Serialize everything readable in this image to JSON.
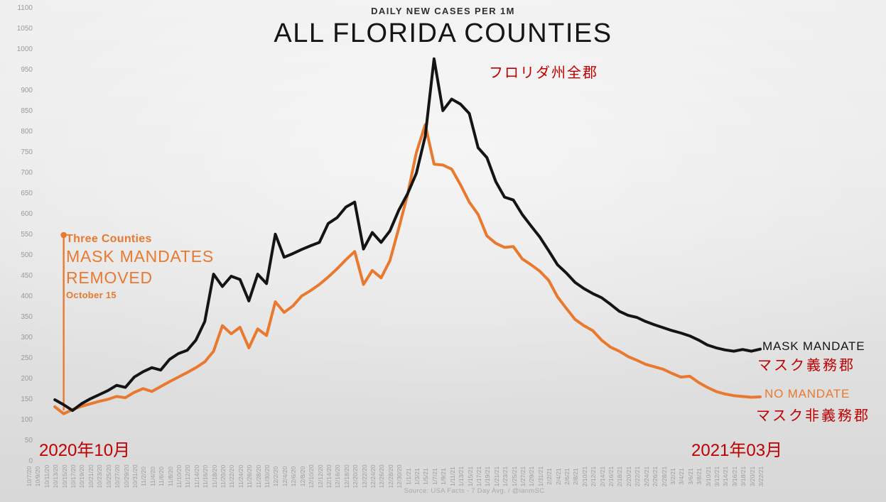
{
  "header": {
    "subtitle": "DAILY NEW CASES PER 1M",
    "title": "ALL FLORIDA COUNTIES",
    "title_ja": "フロリダ州全郡"
  },
  "annotations": {
    "event": {
      "line1": "Three Counties",
      "line2": "MASK MANDATES",
      "line3": "REMOVED",
      "line4": "October 15"
    },
    "series_labels": {
      "mask_mandate": "MASK MANDATE",
      "mask_mandate_ja": "マスク義務郡",
      "no_mandate": "NO MANDATE",
      "no_mandate_ja": "マスク非義務郡"
    },
    "period_left_ja": "2020年10月",
    "period_right_ja": "2021年03月"
  },
  "footer": {
    "source": "Source: USA Facts - 7 Day Avg. / @ianmSC"
  },
  "colors": {
    "background_top": "#efefef",
    "background_bottom": "#d8d8d8",
    "mask_mandate_line": "#141414",
    "no_mandate_line": "#e8792f",
    "annotation_orange": "#e8792f",
    "annotation_red": "#c00000",
    "axis_text": "#9b9b9b",
    "title_text": "#151515",
    "source_text": "#a9a9a9"
  },
  "chart_data": {
    "type": "line",
    "title": "ALL FLORIDA COUNTIES",
    "subtitle": "DAILY NEW CASES PER 1M",
    "ylabel": "",
    "xlabel": "",
    "ylim": [
      0,
      1100
    ],
    "ytick_step": 50,
    "grid": false,
    "legend_position": "right-of-line-ends",
    "x": [
      "10/7/20",
      "10/9/20",
      "10/11/20",
      "10/13/20",
      "10/15/20",
      "10/17/20",
      "10/19/20",
      "10/21/20",
      "10/23/20",
      "10/25/20",
      "10/27/20",
      "10/29/20",
      "10/31/20",
      "11/2/20",
      "11/4/20",
      "11/6/20",
      "11/8/20",
      "11/10/20",
      "11/12/20",
      "11/14/20",
      "11/16/20",
      "11/18/20",
      "11/20/20",
      "11/22/20",
      "11/24/20",
      "11/26/20",
      "11/28/20",
      "11/30/20",
      "12/2/20",
      "12/4/20",
      "12/6/20",
      "12/8/20",
      "12/10/20",
      "12/12/20",
      "12/14/20",
      "12/16/20",
      "12/18/20",
      "12/20/20",
      "12/22/20",
      "12/24/20",
      "12/26/20",
      "12/28/20",
      "12/30/20",
      "1/1/21",
      "1/3/21",
      "1/5/21",
      "1/7/21",
      "1/9/21",
      "1/11/21",
      "1/13/21",
      "1/15/21",
      "1/17/21",
      "1/19/21",
      "1/21/21",
      "1/23/21",
      "1/25/21",
      "1/27/21",
      "1/29/21",
      "1/31/21",
      "2/2/21",
      "2/4/21",
      "2/6/21",
      "2/8/21",
      "2/10/21",
      "2/12/21",
      "2/14/21",
      "2/16/21",
      "2/18/21",
      "2/20/21",
      "2/22/21",
      "2/24/21",
      "2/26/21",
      "2/28/21",
      "3/2/21",
      "3/4/21",
      "3/6/21",
      "3/8/21",
      "3/10/21",
      "3/12/21",
      "3/14/21",
      "3/16/21",
      "3/18/21",
      "3/20/21",
      "3/22/21"
    ],
    "series": [
      {
        "name": "MASK MANDATE",
        "name_ja": "マスク義務郡",
        "color": "#141414",
        "values": [
          null,
          null,
          null,
          150,
          138,
          124,
          140,
          152,
          162,
          172,
          185,
          180,
          205,
          218,
          228,
          222,
          248,
          262,
          270,
          295,
          340,
          455,
          425,
          450,
          442,
          390,
          455,
          432,
          552,
          496,
          505,
          515,
          524,
          532,
          578,
          592,
          618,
          630,
          516,
          556,
          532,
          560,
          610,
          650,
          700,
          790,
          978,
          852,
          880,
          868,
          845,
          762,
          738,
          680,
          642,
          635,
          600,
          572,
          545,
          512,
          478,
          458,
          435,
          420,
          408,
          398,
          382,
          365,
          355,
          350,
          340,
          332,
          325,
          318,
          312,
          305,
          295,
          283,
          276,
          271,
          268,
          272,
          268,
          273
        ]
      },
      {
        "name": "NO MANDATE",
        "name_ja": "マスク非義務郡",
        "color": "#e8792f",
        "values": [
          null,
          null,
          null,
          133,
          116,
          126,
          134,
          140,
          146,
          151,
          158,
          155,
          168,
          177,
          170,
          182,
          194,
          205,
          216,
          228,
          242,
          268,
          330,
          310,
          326,
          276,
          322,
          306,
          388,
          362,
          378,
          402,
          415,
          430,
          448,
          468,
          490,
          510,
          430,
          464,
          446,
          488,
          566,
          648,
          750,
          818,
          722,
          720,
          710,
          672,
          630,
          600,
          548,
          530,
          520,
          522,
          492,
          478,
          462,
          440,
          400,
          372,
          345,
          330,
          318,
          295,
          278,
          268,
          255,
          246,
          236,
          230,
          224,
          214,
          205,
          207,
          192,
          180,
          170,
          164,
          160,
          158,
          156,
          157
        ]
      }
    ],
    "annotation": {
      "text": "Three Counties MASK MANDATES REMOVED",
      "subtext": "October 15",
      "x_index": 4,
      "x_label": "10/15/20",
      "marker_top_value": 550
    }
  }
}
